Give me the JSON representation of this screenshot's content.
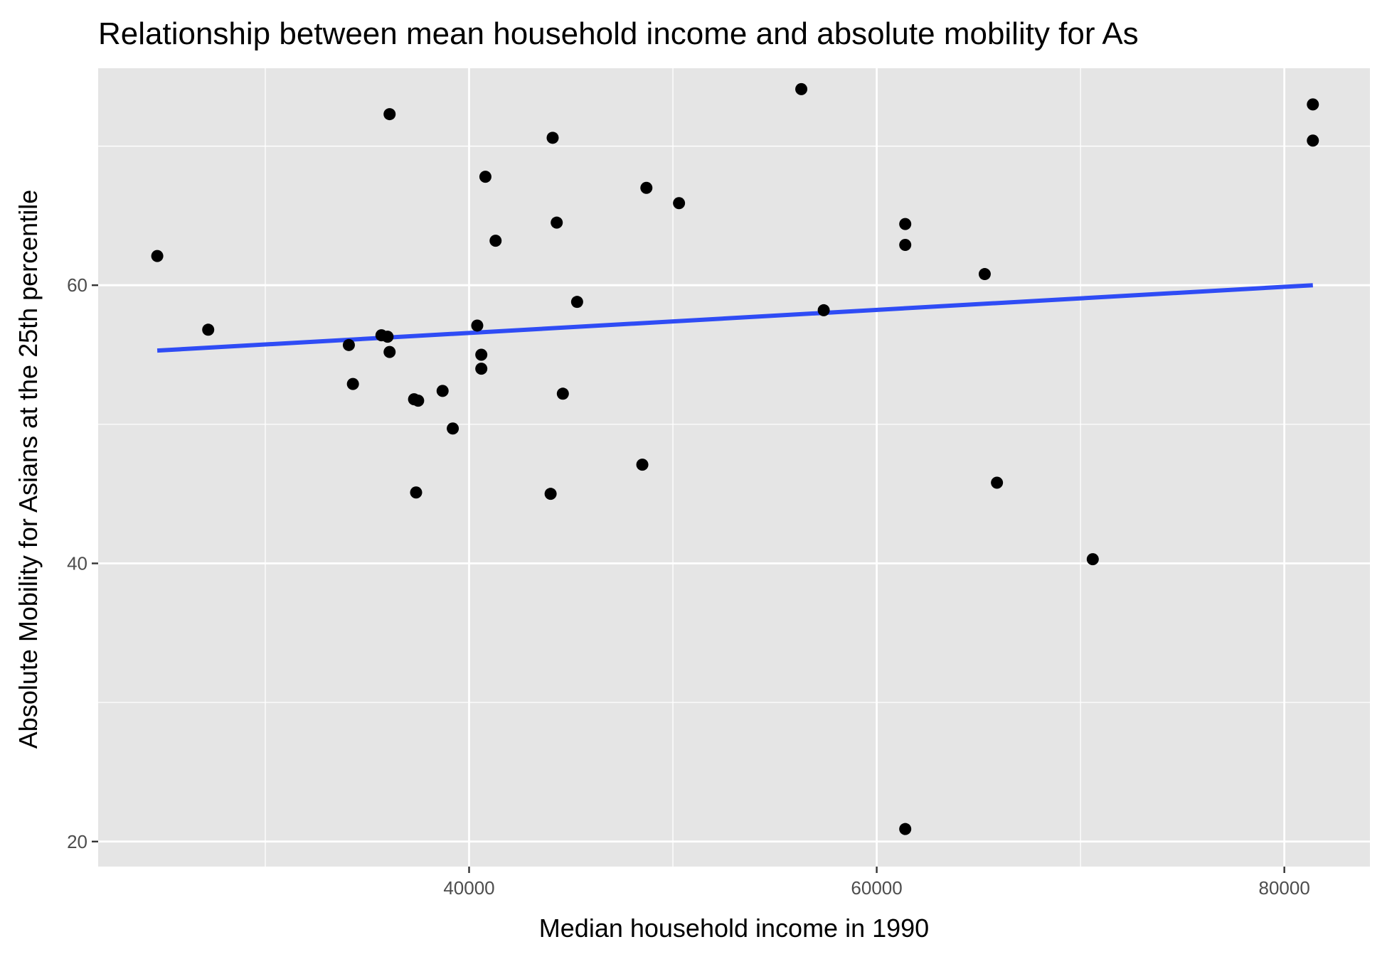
{
  "chart_data": {
    "type": "scatter",
    "title": "Relationship between mean household income and absolute mobility for As",
    "xlabel": "Median household income in 1990",
    "ylabel": "Absolute Mobility for Asians at the 25th percentile",
    "xlim": [
      21800,
      84200
    ],
    "ylim": [
      18.2,
      75.6
    ],
    "x_ticks": [
      40000,
      60000,
      80000
    ],
    "x_tick_labels": [
      "40000",
      "60000",
      "80000"
    ],
    "y_ticks": [
      20,
      40,
      60
    ],
    "y_tick_labels": [
      "20",
      "40",
      "60"
    ],
    "x_minor": [
      30000,
      50000,
      70000
    ],
    "y_minor": [
      30,
      50,
      70
    ],
    "grid": true,
    "points": [
      {
        "x": 24700,
        "y": 62.1
      },
      {
        "x": 27200,
        "y": 56.8
      },
      {
        "x": 34100,
        "y": 55.7
      },
      {
        "x": 34300,
        "y": 52.9
      },
      {
        "x": 35700,
        "y": 56.4
      },
      {
        "x": 36000,
        "y": 56.3
      },
      {
        "x": 36100,
        "y": 55.2
      },
      {
        "x": 36100,
        "y": 72.3
      },
      {
        "x": 37300,
        "y": 51.8
      },
      {
        "x": 37500,
        "y": 51.7
      },
      {
        "x": 37400,
        "y": 45.1
      },
      {
        "x": 38700,
        "y": 52.4
      },
      {
        "x": 39200,
        "y": 49.7
      },
      {
        "x": 40400,
        "y": 57.1
      },
      {
        "x": 40600,
        "y": 55.0
      },
      {
        "x": 40600,
        "y": 54.0
      },
      {
        "x": 40800,
        "y": 67.8
      },
      {
        "x": 41300,
        "y": 63.2
      },
      {
        "x": 44100,
        "y": 70.6
      },
      {
        "x": 44000,
        "y": 45.0
      },
      {
        "x": 44300,
        "y": 64.5
      },
      {
        "x": 44600,
        "y": 52.2
      },
      {
        "x": 45300,
        "y": 58.8
      },
      {
        "x": 48500,
        "y": 47.1
      },
      {
        "x": 48700,
        "y": 67.0
      },
      {
        "x": 50300,
        "y": 65.9
      },
      {
        "x": 56300,
        "y": 74.1
      },
      {
        "x": 57400,
        "y": 58.2
      },
      {
        "x": 61400,
        "y": 64.4
      },
      {
        "x": 61400,
        "y": 62.9
      },
      {
        "x": 61400,
        "y": 20.9
      },
      {
        "x": 65300,
        "y": 60.8
      },
      {
        "x": 65900,
        "y": 45.8
      },
      {
        "x": 70600,
        "y": 40.3
      },
      {
        "x": 81400,
        "y": 73.0
      },
      {
        "x": 81400,
        "y": 70.4
      }
    ],
    "trend_line": {
      "x": [
        24700,
        81400
      ],
      "y": [
        55.3,
        60.0
      ]
    },
    "colors": {
      "panel": "#e5e5e5",
      "grid": "#ffffff",
      "point": "#000000",
      "trend": "#2f4cf5",
      "tick": "#333333"
    }
  }
}
